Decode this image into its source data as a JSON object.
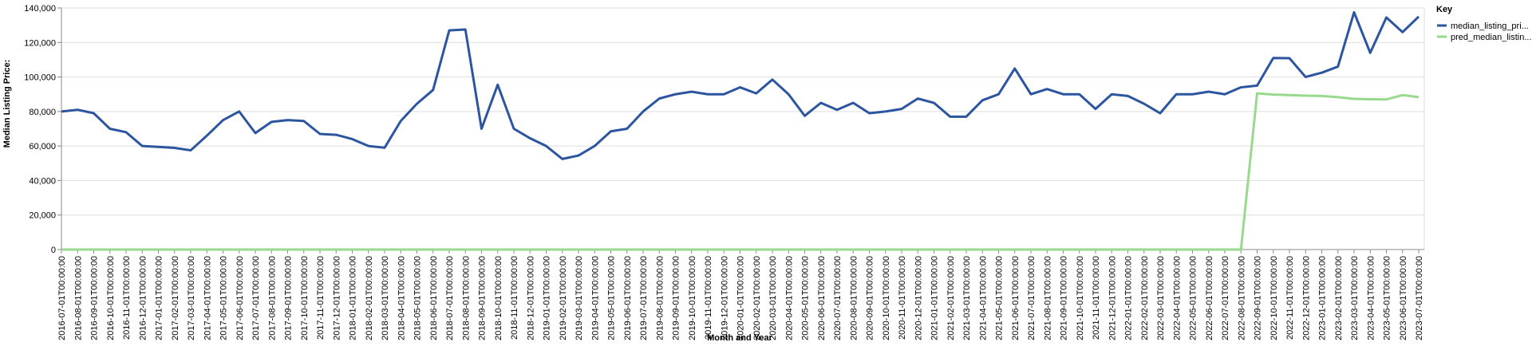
{
  "chart_data": {
    "type": "line",
    "x_label": "Month and Year",
    "y_label": "Median Listing Price:",
    "legend_title": "Key",
    "categories": [
      "2016-07-01T00:00:00",
      "2016-08-01T00:00:00",
      "2016-09-01T00:00:00",
      "2016-10-01T00:00:00",
      "2016-11-01T00:00:00",
      "2016-12-01T00:00:00",
      "2017-01-01T00:00:00",
      "2017-02-01T00:00:00",
      "2017-03-01T00:00:00",
      "2017-04-01T00:00:00",
      "2017-05-01T00:00:00",
      "2017-06-01T00:00:00",
      "2017-07-01T00:00:00",
      "2017-08-01T00:00:00",
      "2017-09-01T00:00:00",
      "2017-10-01T00:00:00",
      "2017-11-01T00:00:00",
      "2017-12-01T00:00:00",
      "2018-01-01T00:00:00",
      "2018-02-01T00:00:00",
      "2018-03-01T00:00:00",
      "2018-04-01T00:00:00",
      "2018-05-01T00:00:00",
      "2018-06-01T00:00:00",
      "2018-07-01T00:00:00",
      "2018-08-01T00:00:00",
      "2018-09-01T00:00:00",
      "2018-10-01T00:00:00",
      "2018-11-01T00:00:00",
      "2018-12-01T00:00:00",
      "2019-01-01T00:00:00",
      "2019-02-01T00:00:00",
      "2019-03-01T00:00:00",
      "2019-04-01T00:00:00",
      "2019-05-01T00:00:00",
      "2019-06-01T00:00:00",
      "2019-07-01T00:00:00",
      "2019-08-01T00:00:00",
      "2019-09-01T00:00:00",
      "2019-10-01T00:00:00",
      "2019-11-01T00:00:00",
      "2019-12-01T00:00:00",
      "2020-01-01T00:00:00",
      "2020-02-01T00:00:00",
      "2020-03-01T00:00:00",
      "2020-04-01T00:00:00",
      "2020-05-01T00:00:00",
      "2020-06-01T00:00:00",
      "2020-07-01T00:00:00",
      "2020-08-01T00:00:00",
      "2020-09-01T00:00:00",
      "2020-10-01T00:00:00",
      "2020-11-01T00:00:00",
      "2020-12-01T00:00:00",
      "2021-01-01T00:00:00",
      "2021-02-01T00:00:00",
      "2021-03-01T00:00:00",
      "2021-04-01T00:00:00",
      "2021-05-01T00:00:00",
      "2021-06-01T00:00:00",
      "2021-07-01T00:00:00",
      "2021-08-01T00:00:00",
      "2021-09-01T00:00:00",
      "2021-10-01T00:00:00",
      "2021-11-01T00:00:00",
      "2021-12-01T00:00:00",
      "2022-01-01T00:00:00",
      "2022-02-01T00:00:00",
      "2022-03-01T00:00:00",
      "2022-04-01T00:00:00",
      "2022-05-01T00:00:00",
      "2022-06-01T00:00:00",
      "2022-07-01T00:00:00",
      "2022-08-01T00:00:00",
      "2022-09-01T00:00:00",
      "2022-10-01T00:00:00",
      "2022-11-01T00:00:00",
      "2022-12-01T00:00:00",
      "2023-01-01T00:00:00",
      "2023-02-01T00:00:00",
      "2023-03-01T00:00:00",
      "2023-04-01T00:00:00",
      "2023-05-01T00:00:00",
      "2023-06-01T00:00:00",
      "2023-07-01T00:00:00"
    ],
    "series": [
      {
        "name": "median_listing_pri...",
        "color": "#2c55a0",
        "values": [
          80000,
          81000,
          79000,
          70000,
          68000,
          60000,
          59500,
          58900,
          57500,
          66000,
          75000,
          80000,
          67500,
          74000,
          75000,
          74500,
          67000,
          66500,
          64000,
          60000,
          59000,
          74500,
          84500,
          92500,
          127000,
          127500,
          70000,
          95500,
          70000,
          64500,
          60000,
          52500,
          54500,
          60000,
          68500,
          70000,
          80000,
          87500,
          90000,
          91500,
          90000,
          90000,
          94000,
          90500,
          98500,
          90000,
          77500,
          85000,
          81000,
          85000,
          79000,
          80000,
          81500,
          87500,
          85000,
          77000,
          77000,
          86500,
          90000,
          104900,
          90000,
          93000,
          90000,
          90000,
          81500,
          90000,
          89000,
          84500,
          79000,
          90000,
          90000,
          91500,
          90000,
          94000,
          95000,
          111000,
          110900,
          100000,
          102500,
          106000,
          137500,
          114000,
          134500,
          126000,
          135000
        ]
      },
      {
        "name": "pred_median_listin...",
        "color": "#98d98e",
        "values": [
          0,
          0,
          0,
          0,
          0,
          0,
          0,
          0,
          0,
          0,
          0,
          0,
          0,
          0,
          0,
          0,
          0,
          0,
          0,
          0,
          0,
          0,
          0,
          0,
          0,
          0,
          0,
          0,
          0,
          0,
          0,
          0,
          0,
          0,
          0,
          0,
          0,
          0,
          0,
          0,
          0,
          0,
          0,
          0,
          0,
          0,
          0,
          0,
          0,
          0,
          0,
          0,
          0,
          0,
          0,
          0,
          0,
          0,
          0,
          0,
          0,
          0,
          0,
          0,
          0,
          0,
          0,
          0,
          0,
          0,
          0,
          0,
          0,
          0,
          90500,
          89800,
          89500,
          89200,
          89000,
          88300,
          87300,
          87100,
          87000,
          89500,
          88300
        ]
      }
    ],
    "ylim": [
      0,
      140000
    ],
    "yticks": [
      0,
      {
        "value": 20000,
        "label": "20,000"
      },
      {
        "value": 40000,
        "label": "40,000"
      },
      {
        "value": 60000,
        "label": "60,000"
      },
      {
        "value": 80000,
        "label": "80,000"
      },
      {
        "value": 100000,
        "label": "100,000"
      },
      {
        "value": 120000,
        "label": "120,000"
      },
      {
        "value": 140000,
        "label": "140,000"
      }
    ],
    "grid": true
  }
}
